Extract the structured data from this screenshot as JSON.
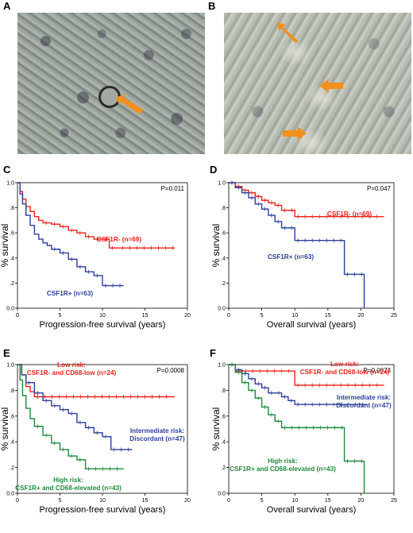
{
  "panels": {
    "a": {
      "letter": "A"
    },
    "b": {
      "letter": "B"
    }
  },
  "colors": {
    "red": "#e8231c",
    "blue": "#2b3f9a",
    "green": "#1e8a3c",
    "arrow": "#f3901c"
  },
  "chart_data": [
    {
      "letter": "C",
      "type": "line",
      "pvalue": "P=0.011",
      "xlabel": "Progression-free survival (years)",
      "ylabel": "% survival",
      "xlim": [
        0,
        20
      ],
      "ylim": [
        0,
        1.0
      ],
      "xticks": [
        "0",
        "5",
        "10",
        "15",
        "20"
      ],
      "yticks": [
        "0.0",
        ".2",
        ".4",
        ".6",
        ".8",
        "1.0"
      ],
      "series": [
        {
          "name": "CSF1R- (n=69)",
          "color": "#e8231c",
          "x": [
            0,
            0.3,
            0.6,
            1.0,
            1.5,
            2.0,
            2.5,
            3.0,
            4.0,
            5.0,
            6.0,
            7.0,
            8.0,
            9.0,
            10.0,
            10.8,
            12.0,
            18.5
          ],
          "y": [
            1.0,
            0.93,
            0.87,
            0.81,
            0.77,
            0.73,
            0.7,
            0.68,
            0.67,
            0.65,
            0.62,
            0.6,
            0.57,
            0.55,
            0.55,
            0.48,
            0.48,
            0.48
          ]
        },
        {
          "name": "CSF1R+ (n=63)",
          "color": "#2b3f9a",
          "x": [
            0,
            0.3,
            0.6,
            1.0,
            1.5,
            2.0,
            2.5,
            3.0,
            3.5,
            4.0,
            5.0,
            6.0,
            7.0,
            8.0,
            9.0,
            10.0,
            12.5
          ],
          "y": [
            1.0,
            0.91,
            0.83,
            0.74,
            0.66,
            0.59,
            0.55,
            0.52,
            0.5,
            0.47,
            0.44,
            0.39,
            0.33,
            0.29,
            0.26,
            0.18,
            0.18
          ]
        }
      ]
    },
    {
      "letter": "D",
      "type": "line",
      "pvalue": "P=0.047",
      "xlabel": "Overall survival (years)",
      "ylabel": "% survival",
      "xlim": [
        0,
        25
      ],
      "ylim": [
        0,
        1.0
      ],
      "xticks": [
        "0",
        "5",
        "10",
        "15",
        "20",
        "25"
      ],
      "yticks": [
        "0.0",
        ".2",
        ".4",
        ".6",
        ".8",
        "1.0"
      ],
      "series": [
        {
          "name": "CSF1R- (n=69)",
          "color": "#e8231c",
          "x": [
            0,
            1.0,
            2.0,
            3.0,
            4.0,
            5.0,
            6.0,
            7.0,
            8.0,
            10.0,
            23.5
          ],
          "y": [
            1.0,
            0.97,
            0.94,
            0.92,
            0.89,
            0.86,
            0.84,
            0.82,
            0.78,
            0.73,
            0.73
          ]
        },
        {
          "name": "CSF1R+ (n=63)",
          "color": "#2b3f9a",
          "x": [
            0,
            1.0,
            2.0,
            3.0,
            4.0,
            5.0,
            6.0,
            7.0,
            8.0,
            10.0,
            17.5,
            20.5
          ],
          "y": [
            1.0,
            0.96,
            0.92,
            0.88,
            0.83,
            0.79,
            0.74,
            0.69,
            0.64,
            0.54,
            0.27,
            0.0
          ]
        }
      ]
    },
    {
      "letter": "E",
      "type": "line",
      "pvalue": "P=0.0008",
      "xlabel": "Progression-free survival (years)",
      "ylabel": "% survival",
      "xlim": [
        0,
        20
      ],
      "ylim": [
        0,
        1.0
      ],
      "xticks": [
        "0",
        "5",
        "10",
        "15",
        "20"
      ],
      "yticks": [
        "0.0",
        ".2",
        ".4",
        ".6",
        ".8",
        "1.0"
      ],
      "series": [
        {
          "name": "Low risk: CSF1R- and CD68-low (n=24)",
          "color": "#e8231c",
          "x": [
            0,
            0.5,
            1.0,
            1.5,
            2.0,
            18.5
          ],
          "y": [
            1.0,
            0.92,
            0.83,
            0.79,
            0.75,
            0.75
          ]
        },
        {
          "name": "Intermediate risk: Discordant (n=47)",
          "color": "#2b3f9a",
          "x": [
            0,
            0.5,
            1.0,
            2.0,
            3.0,
            4.0,
            5.0,
            6.0,
            7.0,
            8.0,
            9.0,
            10.0,
            11.0,
            13.5
          ],
          "y": [
            1.0,
            0.92,
            0.86,
            0.78,
            0.72,
            0.68,
            0.65,
            0.62,
            0.55,
            0.51,
            0.47,
            0.44,
            0.34,
            0.34
          ]
        },
        {
          "name": "High risk: CSF1R+ and CD68-elevated (n=43)",
          "color": "#1e8a3c",
          "x": [
            0,
            0.3,
            0.6,
            1.0,
            1.5,
            2.0,
            3.0,
            4.0,
            5.0,
            6.0,
            7.0,
            8.0,
            12.5
          ],
          "y": [
            1.0,
            0.88,
            0.76,
            0.66,
            0.58,
            0.52,
            0.45,
            0.39,
            0.34,
            0.29,
            0.26,
            0.19,
            0.19
          ]
        }
      ]
    },
    {
      "letter": "F",
      "type": "line",
      "pvalue": "P=0.0073",
      "xlabel": "Overall survival (years)",
      "ylabel": "% survival",
      "xlim": [
        0,
        25
      ],
      "ylim": [
        0,
        1.0
      ],
      "xticks": [
        "0",
        "5",
        "10",
        "15",
        "20",
        "25"
      ],
      "yticks": [
        "0.0",
        ".2",
        ".4",
        ".6",
        ".8",
        "1.0"
      ],
      "series": [
        {
          "name": "Low risk: CSF1R- and CD68-low (n=24)",
          "color": "#e8231c",
          "x": [
            0,
            1.0,
            10.0,
            23.5
          ],
          "y": [
            1.0,
            0.95,
            0.84,
            0.84
          ]
        },
        {
          "name": "Intermediate risk: Discordant (n=47)",
          "color": "#2b3f9a",
          "x": [
            0,
            1.0,
            2.0,
            3.0,
            4.0,
            5.0,
            6.0,
            8.0,
            9.0,
            10.0,
            21.0
          ],
          "y": [
            1.0,
            0.96,
            0.93,
            0.89,
            0.85,
            0.82,
            0.78,
            0.75,
            0.72,
            0.69,
            0.69
          ]
        },
        {
          "name": "High risk: CSF1R+ and CD68-elevated (n=43)",
          "color": "#1e8a3c",
          "x": [
            0,
            1.0,
            2.0,
            3.0,
            4.0,
            5.0,
            6.0,
            7.0,
            8.0,
            17.5,
            20.5
          ],
          "y": [
            1.0,
            0.94,
            0.86,
            0.8,
            0.74,
            0.67,
            0.61,
            0.56,
            0.51,
            0.25,
            0.0
          ]
        }
      ]
    }
  ]
}
